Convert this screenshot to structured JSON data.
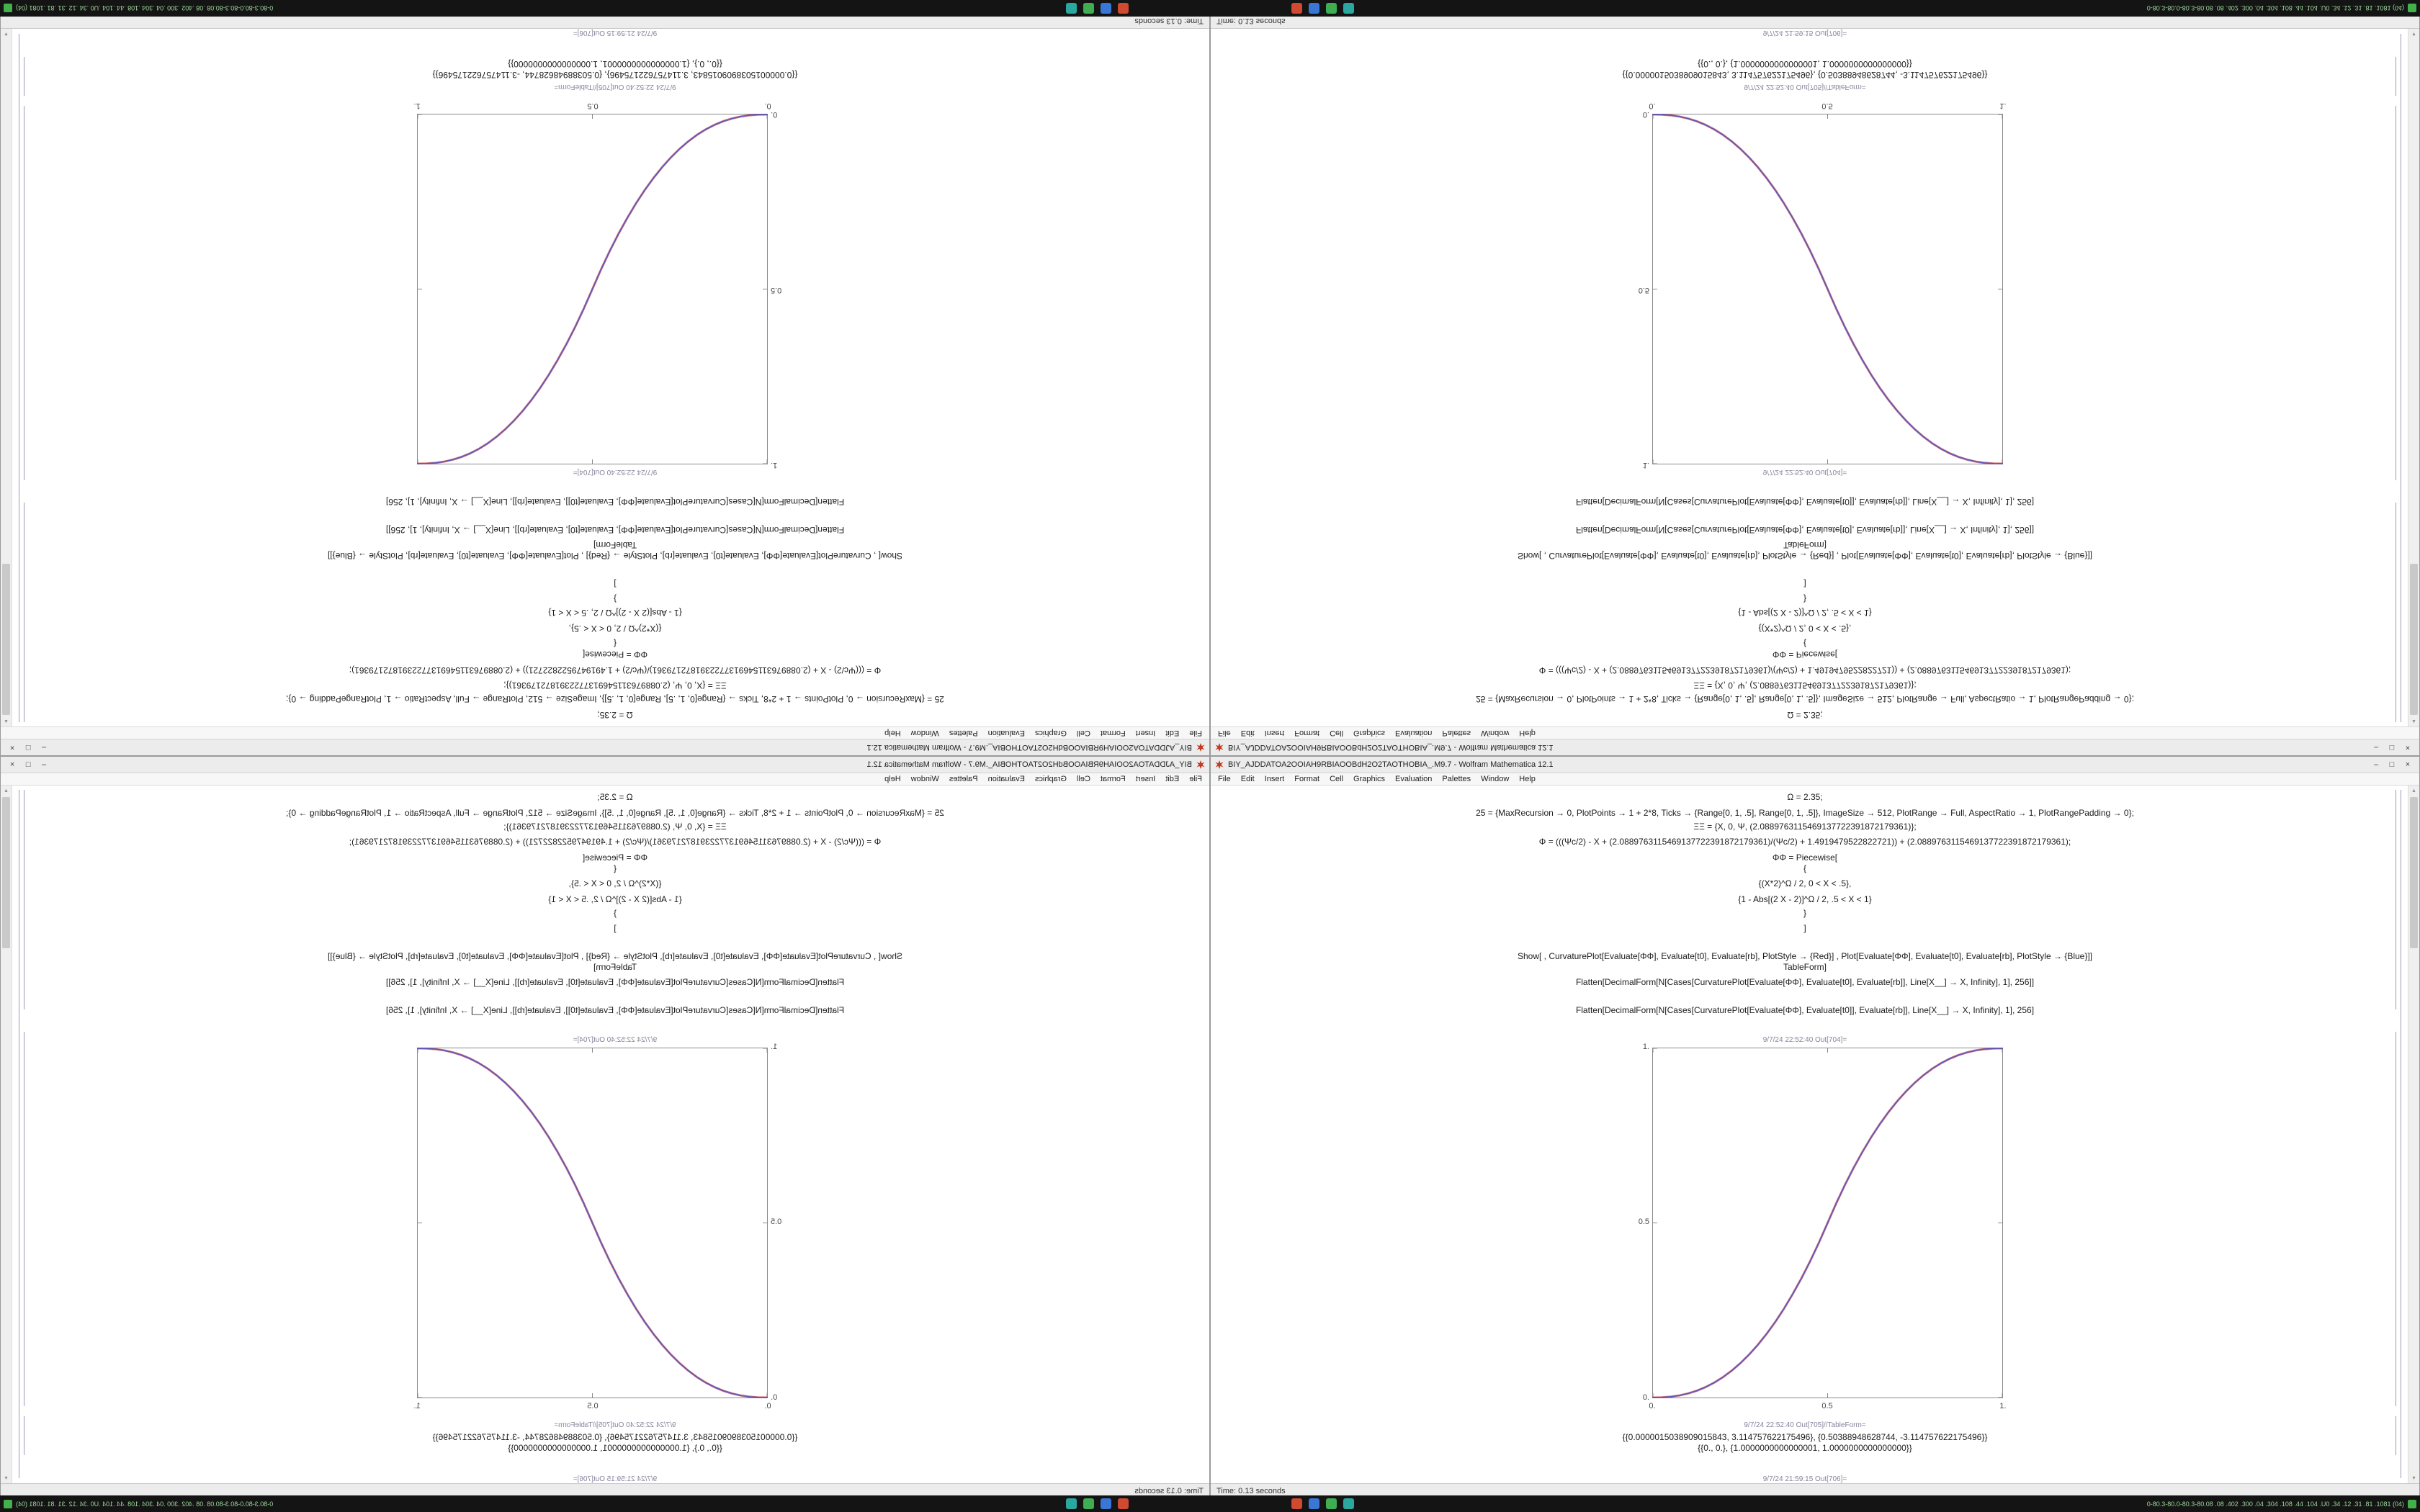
{
  "window": {
    "title": "BIY_AJDDATOA2OOIAH9RBIAOOBdH2O2TAOTHOBIA_.M9.7 - Wolfram Mathematica 12.1",
    "menu_items": [
      "File",
      "Edit",
      "Insert",
      "Format",
      "Cell",
      "Graphics",
      "Evaluation",
      "Palettes",
      "Window",
      "Help"
    ],
    "buttons": {
      "minimize": "–",
      "maximize": "□",
      "close": "×"
    },
    "status_left": "Time: 0.13 seconds",
    "spikey_color": "#c23b22"
  },
  "notebook": {
    "code_lines": [
      "Ω = 2.35;",
      "25 = {MaxRecursion → 0, PlotPoints → 1 + 2*8, Ticks → {Range[0, 1, .5], Range[0, 1, .5]}, ImageSize → 512, PlotRange → Full, AspectRatio → 1, PlotRangePadding → 0};",
      "ΞΞ = {X, 0, Ψ, (2.0889763115469137722391872179361)};",
      "Φ = (((Ψc/2) - X + (2.0889763115469137722391872179361)/(Ψc/2) + 1.4919479522822721)) + (2.0889763115469137722391872179361);",
      "ΦΦ = Piecewise[",
      "{",
      "{(X*2)^Ω / 2, 0 < X < .5},",
      "{1 - Abs[(2 X - 2)]^Ω / 2, .5 < X < 1}",
      "}",
      "]",
      "Show[ , CurvaturePlot[Evaluate[ΦΦ], Evaluate[t0], Evaluate[rb], PlotStyle → {Red}] ,  Plot[Evaluate[ΦΦ], Evaluate[t0], Evaluate[rb], PlotStyle → {Blue}]]",
      "TableForm]",
      "Flatten[DecimalForm[N[Cases[CurvaturePlot[Evaluate[ΦΦ], Evaluate[t0], Evaluate[rb]], Line[X__] → X, Infinity], 1], 256]]",
      "Flatten[DecimalForm[N[Cases[CurvaturePlot[Evaluate[ΦΦ], Evaluate[t0]], Evaluate[rb]], Line[X__] → X, Infinity], 1], 256]"
    ],
    "out_label_plot": "9/7/24 22:52:40 Out[704]=",
    "out_label_table": "9/7/24 22:52:40 Out[705]//TableForm=",
    "out_label_next": "9/7/24 21:59:15 Out[706]=",
    "table_output_lines": [
      "{{0.0000015038909015843, 3.114757622175496}, {0.50388948628744, -3.114757622175496}}",
      "{{0., 0.}, {1.0000000000000001, 1.0000000000000000}}"
    ]
  },
  "chart_data": {
    "type": "line",
    "title": "",
    "xlabel": "",
    "ylabel": "",
    "xlim": [
      0,
      1
    ],
    "ylim": [
      0,
      1
    ],
    "frame": true,
    "grid": false,
    "legend": "none",
    "tick_values": [
      0,
      0.5,
      1
    ],
    "x_tick_labels": [
      "0.",
      "0.5",
      "1."
    ],
    "y_tick_labels": [
      "1.",
      "0.5",
      "0."
    ],
    "x": [
      0,
      0.025,
      0.05,
      0.075,
      0.1,
      0.125,
      0.15,
      0.175,
      0.2,
      0.225,
      0.25,
      0.275,
      0.3,
      0.325,
      0.35,
      0.375,
      0.4,
      0.425,
      0.45,
      0.475,
      0.5,
      0.525,
      0.55,
      0.575,
      0.6,
      0.625,
      0.65,
      0.675,
      0.7,
      0.725,
      0.75,
      0.775,
      0.8,
      0.825,
      0.85,
      0.875,
      0.9,
      0.925,
      0.95,
      0.975,
      1
    ],
    "values": [
      0,
      0.0004,
      0.0022,
      0.0058,
      0.0114,
      0.0192,
      0.0295,
      0.0424,
      0.058,
      0.0766,
      0.0981,
      0.1227,
      0.1506,
      0.1817,
      0.2162,
      0.2543,
      0.2961,
      0.3412,
      0.3903,
      0.4432,
      0.5,
      0.5568,
      0.6097,
      0.6588,
      0.7039,
      0.7457,
      0.7838,
      0.8183,
      0.8494,
      0.8773,
      0.9019,
      0.9234,
      0.942,
      0.9576,
      0.9705,
      0.9808,
      0.9886,
      0.9942,
      0.9978,
      0.9996,
      1
    ],
    "series": [
      {
        "name": "CurvaturePlot (Red)",
        "color": "#cf4040"
      },
      {
        "name": "Plot (Blue)",
        "color": "#4853c8"
      }
    ]
  },
  "taskbar": {
    "icons": [
      {
        "name": "taskbar-app-red",
        "color": "#cf4a31"
      },
      {
        "name": "taskbar-app-blue",
        "color": "#3a76d6"
      },
      {
        "name": "taskbar-app-green",
        "color": "#3fae52"
      },
      {
        "name": "taskbar-app-teal",
        "color": "#2aa8a0"
      }
    ],
    "tray_text": "0-80.3-80.0-80.3-80.08 .08 .402 .300 .04 .304 .108 .44 .104 .U0 .34 .12 .31 .81 .1081 (04)",
    "tray_icon_color": "#43b14b"
  }
}
